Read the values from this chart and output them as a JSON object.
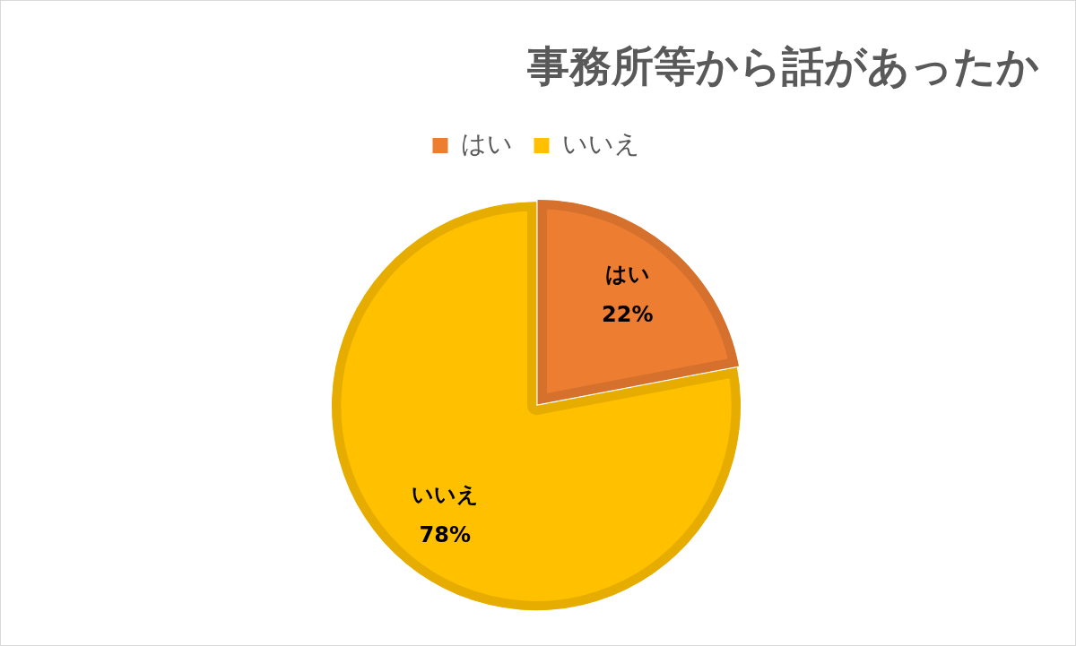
{
  "chart_data": {
    "type": "pie",
    "title": "事務所等から話があったか",
    "categories": [
      "はい",
      "いいえ"
    ],
    "values": [
      22,
      78
    ],
    "colors": [
      "#ed7d31",
      "#ffc000"
    ],
    "value_labels": [
      "22%",
      "78%"
    ],
    "legend": "top"
  }
}
